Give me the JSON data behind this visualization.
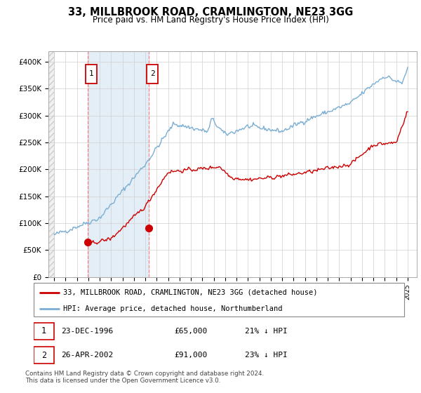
{
  "title": "33, MILLBROOK ROAD, CRAMLINGTON, NE23 3GG",
  "subtitle": "Price paid vs. HM Land Registry's House Price Index (HPI)",
  "legend_entry1": "33, MILLBROOK ROAD, CRAMLINGTON, NE23 3GG (detached house)",
  "legend_entry2": "HPI: Average price, detached house, Northumberland",
  "annotation1_date": "23-DEC-1996",
  "annotation1_price": "£65,000",
  "annotation1_hpi": "21% ↓ HPI",
  "annotation2_date": "26-APR-2002",
  "annotation2_price": "£91,000",
  "annotation2_hpi": "23% ↓ HPI",
  "footer": "Contains HM Land Registry data © Crown copyright and database right 2024.\nThis data is licensed under the Open Government Licence v3.0.",
  "hpi_color": "#7aaed4",
  "price_color": "#cc0000",
  "sale1_x": 1996.97,
  "sale1_y": 65000,
  "sale2_x": 2002.32,
  "sale2_y": 91000,
  "ylim": [
    0,
    420000
  ],
  "xlim_start": 1993.5,
  "xlim_end": 2025.8
}
